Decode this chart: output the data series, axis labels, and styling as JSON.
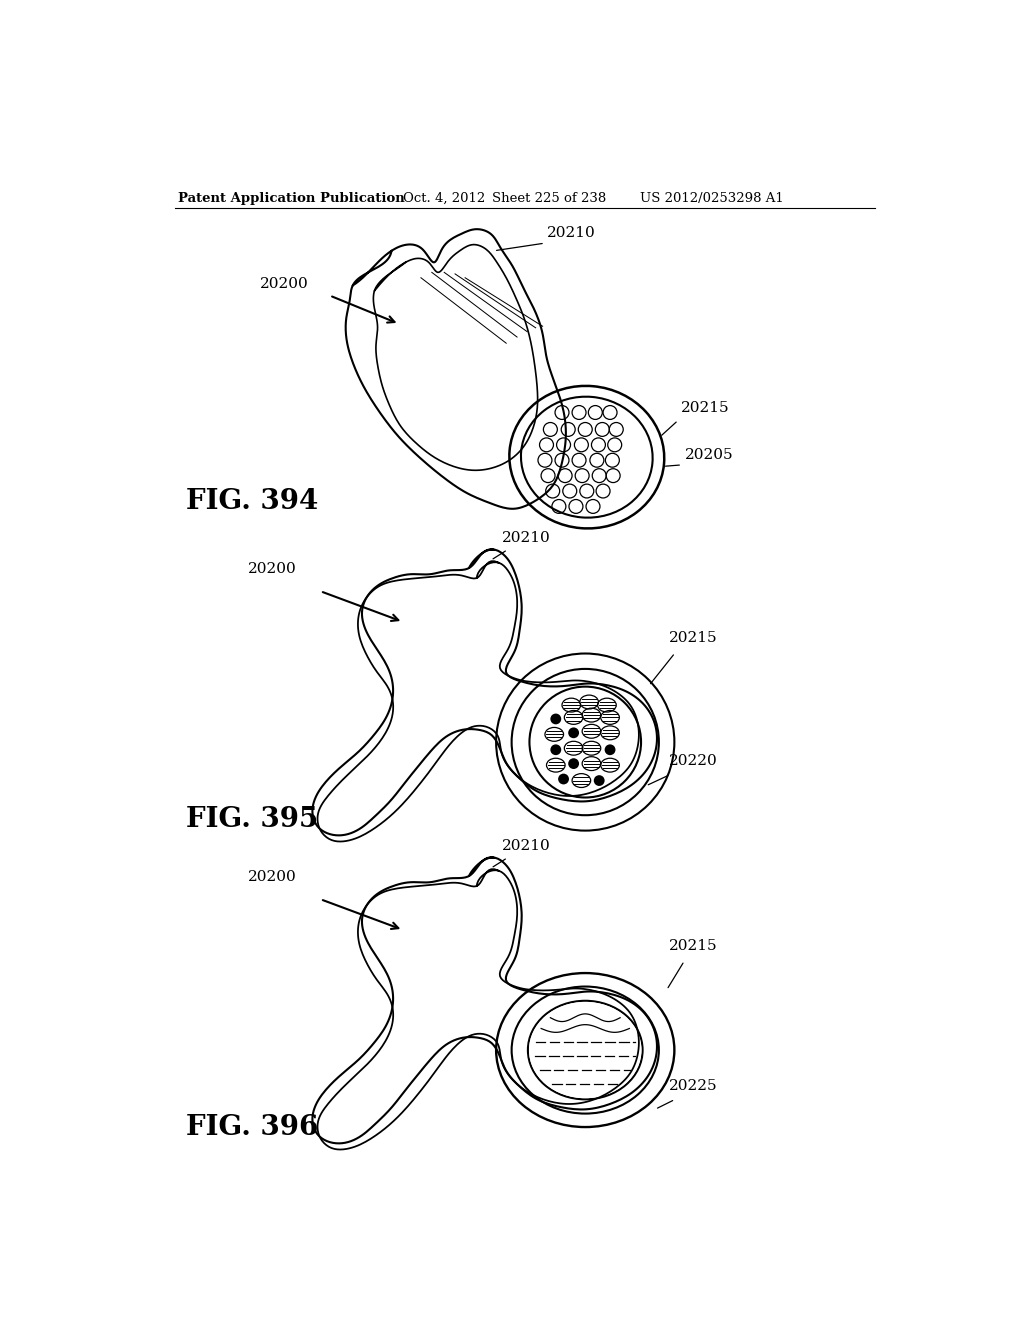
{
  "background_color": "#ffffff",
  "header_text": "Patent Application Publication",
  "header_date": "Oct. 4, 2012",
  "header_sheet": "Sheet 225 of 238",
  "header_patent": "US 2012/0253298 A1",
  "fig394_label": "FIG. 394",
  "fig395_label": "FIG. 395",
  "fig396_label": "FIG. 396",
  "label_20200": "20200",
  "label_20210": "20210",
  "label_20215": "20215",
  "label_20205": "20205",
  "label_20220": "20220",
  "label_20225": "20225",
  "line_color": "#000000",
  "lw": 1.5,
  "lw_thin": 0.9,
  "text_color": "#000000"
}
